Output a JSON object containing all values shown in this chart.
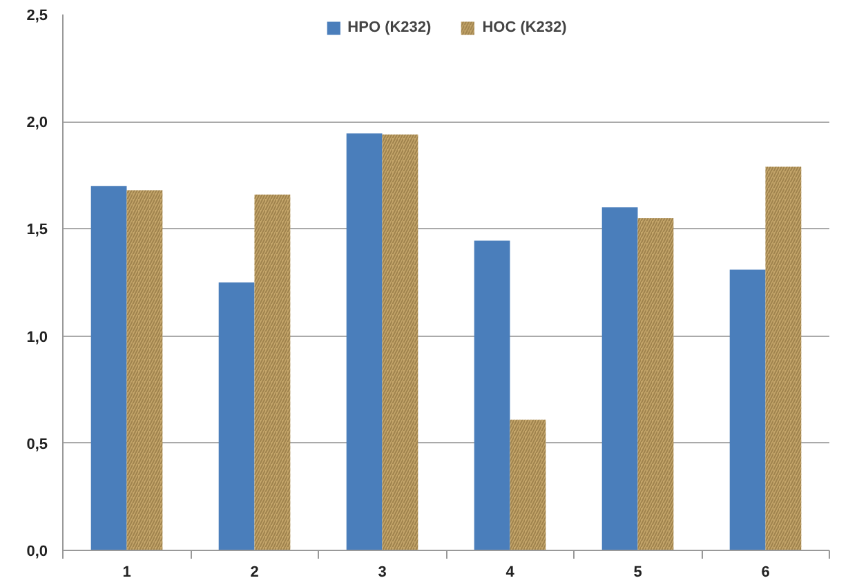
{
  "chart_data": {
    "type": "bar",
    "categories": [
      "1",
      "2",
      "3",
      "4",
      "5",
      "6"
    ],
    "series": [
      {
        "name": "HPO (K232)",
        "color": "#4a7ebb",
        "values": [
          1.7,
          1.25,
          1.945,
          1.445,
          1.6,
          1.31
        ]
      },
      {
        "name": "HOC (K232)",
        "color": "#c4a56a",
        "values": [
          1.68,
          1.66,
          1.94,
          0.61,
          1.55,
          1.79
        ]
      }
    ],
    "ylim": [
      0,
      2.5
    ],
    "yticks": [
      {
        "value": 0,
        "label": "0,0"
      },
      {
        "value": 0.5,
        "label": "0,5"
      },
      {
        "value": 1,
        "label": "1,0"
      },
      {
        "value": 1.5,
        "label": "1,5"
      },
      {
        "value": 2,
        "label": "2,0"
      },
      {
        "value": 2.5,
        "label": "2,5"
      }
    ],
    "grid": "y",
    "legend": "top"
  }
}
